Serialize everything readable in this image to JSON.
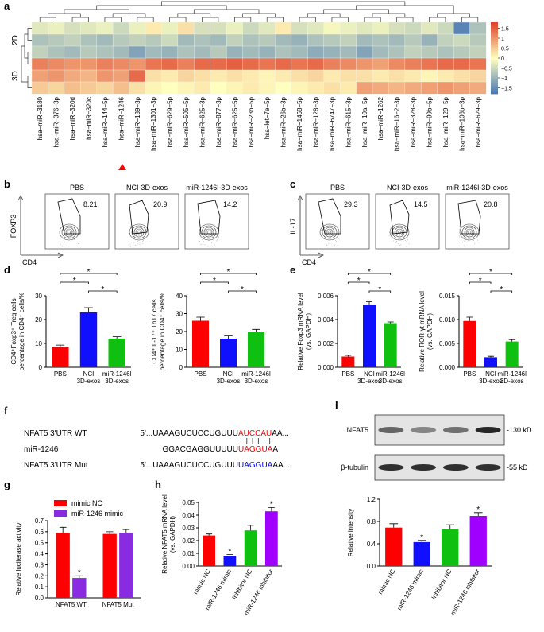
{
  "panel_labels": [
    "a",
    "b",
    "c",
    "d",
    "e",
    "f",
    "g",
    "h",
    "I"
  ],
  "flow": [
    {
      "y_label": "FOXP3",
      "x_label": "CD4",
      "plots": [
        {
          "title": "PBS",
          "gate": 8.21
        },
        {
          "title": "NCI-3D-exos",
          "gate": 20.9
        },
        {
          "title": "miR-1246l-3D-exos",
          "gate": 14.2
        }
      ]
    },
    {
      "y_label": "IL-17",
      "x_label": "CD4",
      "plots": [
        {
          "title": "PBS",
          "gate": 29.3
        },
        {
          "title": "NCI-3D-exos",
          "gate": 14.5
        },
        {
          "title": "miR-1246l-3D-exos",
          "gate": 20.8
        }
      ]
    }
  ],
  "sequence": {
    "rows": [
      {
        "label": "NFAT5 3'UTR WT",
        "before": "5'...UAAAGUCUCCUGUUU",
        "site": "AUCCAU",
        "after": "AA...",
        "site_color": "#ff0000"
      },
      {
        "label": "miR-1246",
        "before": "GGACGAGGUUUUU",
        "site": "UAGGUA",
        "after": "A",
        "site_color": "#ff0000"
      },
      {
        "label": "NFAT5 3'UTR Mut",
        "before": "5'...UAAAGUCUCCUGUUU",
        "site": "UAGGUA",
        "after": "AA...",
        "site_color": "#0000ff"
      }
    ]
  },
  "blot": {
    "bands": [
      "NFAT5",
      "β-tubulin"
    ],
    "markers": [
      "-130 kD",
      "-55 kD"
    ]
  },
  "chart_data": [
    {
      "type": "heatmap",
      "x_categories": [
        "hsa−miR−3180",
        "hsa−miR−376−3p",
        "hsa−miR−320d",
        "hsa−miR−320c",
        "hsa−miR−144−5p",
        "hsa−miR−1246",
        "hsa−miR−139−3p",
        "hsa−miR−1301−3p",
        "hsa−miR−629−5p",
        "hsa−miR−505−5p",
        "hsa−miR−625−3p",
        "hsa−miR−877−3p",
        "hsa−miR−625−5p",
        "hsa−miR−23b−5p",
        "hsa−let−7e−5p",
        "hsa−miR−26b−3p",
        "hsa−miR−1468−5p",
        "hsa−miR−128−3p",
        "hsa−miR−6747−3p",
        "hsa−miR−615−3p",
        "hsa−miR−10a−5p",
        "hsa−miR−1262",
        "hsa−miR−16−2−3p",
        "hsa−miR−328−3p",
        "hsa−miR−99b−5p",
        "hsa−miR−129−5p",
        "hsa−miR−106b−3p",
        "hsa−miR−629−3p"
      ],
      "groups": [
        {
          "name": "2D",
          "values": [
            [
              -0.3,
              -0.2,
              -0.4,
              -0.3,
              -0.2,
              -0.5,
              -0.2,
              0.2,
              -0.2,
              0.3,
              -0.4,
              -0.4,
              -0.2,
              -0.5,
              -0.3,
              0.2,
              -0.4,
              -0.3,
              -0.1,
              -0.2,
              -0.3,
              -0.2,
              -0.4,
              -0.5,
              -0.3,
              -0.5,
              -1.6,
              -0.8
            ],
            [
              -0.8,
              -0.7,
              -0.6,
              -0.8,
              -0.9,
              -0.7,
              -0.6,
              -0.7,
              -0.5,
              -0.9,
              -0.8,
              -0.9,
              -0.6,
              -0.8,
              -0.7,
              -0.9,
              -1.0,
              -0.8,
              -0.7,
              -0.6,
              -0.9,
              -0.8,
              -0.9,
              -0.7,
              -1.0,
              -0.6,
              -0.5,
              -0.7
            ],
            [
              -0.6,
              -0.8,
              -0.9,
              -0.7,
              -0.8,
              -0.9,
              -1.2,
              -0.9,
              -1.0,
              -0.8,
              -0.9,
              -0.7,
              -1.0,
              -0.9,
              -1.0,
              -0.8,
              -0.9,
              -1.1,
              -1.0,
              -0.9,
              -1.2,
              -0.9,
              -0.8,
              -0.6,
              -0.7,
              -0.8,
              -0.7,
              -0.6
            ]
          ]
        },
        {
          "name": "3D",
          "values": [
            [
              1.2,
              1.1,
              1.0,
              1.0,
              1.2,
              1.1,
              1.0,
              1.3,
              1.4,
              1.2,
              1.4,
              1.4,
              1.5,
              1.4,
              1.3,
              1.4,
              1.3,
              1.4,
              1.2,
              1.1,
              1.0,
              0.9,
              1.1,
              1.2,
              1.3,
              1.4,
              1.4,
              1.3
            ],
            [
              0.9,
              1.0,
              0.8,
              0.7,
              1.0,
              0.9,
              1.4,
              0.3,
              0.2,
              0.4,
              0.3,
              0.2,
              0.3,
              0.2,
              0.1,
              0.2,
              0.3,
              0.4,
              0.2,
              0.3,
              0.3,
              0.2,
              0.3,
              0.2,
              0.1,
              0.2,
              0.3,
              0.4
            ],
            [
              0.5,
              0.4,
              0.6,
              0.5,
              0.4,
              0.6,
              0.3,
              0.1,
              0.0,
              0.1,
              0.2,
              0.0,
              0.1,
              0.2,
              0.1,
              0.0,
              0.1,
              0.2,
              0.3,
              0.2,
              0.9,
              0.8,
              0.7,
              0.8,
              0.9,
              1.0,
              0.9,
              0.8
            ]
          ]
        }
      ],
      "zlim": [
        -1.8,
        1.8
      ],
      "zticks": [
        1.5,
        1,
        0.5,
        0,
        {
          "value": -0.5,
          "label": "−0.5"
        },
        {
          "value": -1,
          "label": "−1"
        },
        {
          "value": -1.5,
          "label": "−1.5"
        }
      ],
      "colors": [
        "#4575b4",
        "#ffffbf",
        "#e0402a"
      ]
    },
    {
      "type": "bar",
      "ylabel": [
        "CD4⁺Foxp3⁺ Treg cells",
        "percentage in CD4⁺ cells/%"
      ],
      "categories": [
        "PBS",
        "NCI\n3D-exos",
        "miR-1246l\n3D-exos"
      ],
      "values": [
        8.5,
        23,
        12
      ],
      "errors": [
        0.8,
        2,
        0.8
      ],
      "colors": [
        "#ff0000",
        "#1010ff",
        "#10c010"
      ],
      "ylim": [
        0,
        30
      ],
      "yticks": [
        0,
        10,
        20,
        30
      ],
      "brackets": [
        {
          "bars": [
            1,
            2
          ],
          "label": "*"
        },
        {
          "bars": [
            0,
            1
          ],
          "label": "*"
        },
        {
          "bars": [
            0,
            2
          ],
          "label": "*"
        }
      ]
    },
    {
      "type": "bar",
      "ylabel": [
        "CD4⁺IL-17⁺ Th17 cells",
        "percentage in CD4⁺ cells/%"
      ],
      "categories": [
        "PBS",
        "NCI\n3D-exos",
        "miR-1246l\n3D-exos"
      ],
      "values": [
        26,
        16,
        20
      ],
      "errors": [
        2,
        1.5,
        1.2
      ],
      "colors": [
        "#ff0000",
        "#1010ff",
        "#10c010"
      ],
      "ylim": [
        0,
        40
      ],
      "yticks": [
        0,
        10,
        20,
        30,
        40
      ],
      "brackets": [
        {
          "bars": [
            1,
            2
          ],
          "label": "*"
        },
        {
          "bars": [
            0,
            1
          ],
          "label": "*"
        },
        {
          "bars": [
            0,
            2
          ],
          "label": "*"
        }
      ]
    },
    {
      "type": "bar",
      "ylabel": [
        "Relative Foxp3 mRNA level",
        "(vs. GAPDH)"
      ],
      "categories": [
        "PBS",
        "NCI\n3D-exos",
        "miR-1246l\n3D-exos"
      ],
      "values": [
        0.0009,
        0.0052,
        0.0037
      ],
      "errors": [
        0.0001,
        0.0003,
        0.0001
      ],
      "colors": [
        "#ff0000",
        "#1010ff",
        "#10c010"
      ],
      "ylim": [
        0,
        0.006
      ],
      "yticks": [
        {
          "value": 0,
          "label": "0.000"
        },
        0.002,
        0.004,
        0.006
      ],
      "brackets": [
        {
          "bars": [
            1,
            2
          ],
          "label": "*"
        },
        {
          "bars": [
            0,
            1
          ],
          "label": "*"
        },
        {
          "bars": [
            0,
            2
          ],
          "label": "*"
        }
      ]
    },
    {
      "type": "bar",
      "ylabel": [
        "Relative ROR-γt mRNA level",
        "(vs. GAPDH)"
      ],
      "categories": [
        "PBS",
        "NCI\n3D-exos",
        "miR-1246l\n3D-exos"
      ],
      "values": [
        0.0097,
        0.0021,
        0.0054
      ],
      "errors": [
        0.0008,
        0.0002,
        0.0004
      ],
      "colors": [
        "#ff0000",
        "#1010ff",
        "#10c010"
      ],
      "ylim": [
        0,
        0.015
      ],
      "yticks": [
        {
          "value": 0,
          "label": "0.000"
        },
        {
          "value": 0.005,
          "label": "0.005"
        },
        {
          "value": 0.01,
          "label": "0.010"
        },
        {
          "value": 0.015,
          "label": "0.015"
        }
      ],
      "brackets": [
        {
          "bars": [
            1,
            2
          ],
          "label": "*"
        },
        {
          "bars": [
            0,
            1
          ],
          "label": "*"
        },
        {
          "bars": [
            0,
            2
          ],
          "label": "*"
        }
      ]
    },
    {
      "type": "bar",
      "ylabel": [
        "Relative luciferase activity"
      ],
      "categories": [
        "NFAT5 WT",
        "NFAT5 Mut"
      ],
      "series": [
        {
          "name": "mimic NC",
          "color": "#ff0000",
          "values": [
            0.59,
            0.58
          ],
          "errors": [
            0.05,
            0.02
          ]
        },
        {
          "name": "miR-1246 mimic",
          "color": "#8a2be2",
          "values": [
            0.18,
            0.59
          ],
          "errors": [
            0.02,
            0.03
          ]
        }
      ],
      "ylim": [
        0,
        0.7
      ],
      "yticks": [
        {
          "value": 0,
          "label": "0.0"
        },
        0.1,
        0.2,
        0.3,
        0.4,
        0.5,
        0.6,
        0.7
      ],
      "annotations": [
        {
          "series": 1,
          "bar": 0,
          "label": "*"
        }
      ],
      "legend": "top-left"
    },
    {
      "type": "bar",
      "ylabel": [
        "Relative NFAT5 mRNA level",
        "(vs. GAPDH)"
      ],
      "categories": [
        "mimic NC",
        "miR-1246 mimic",
        "Inhibitor NC",
        "miR-1246 inhibitor"
      ],
      "values": [
        0.024,
        0.008,
        0.028,
        0.043
      ],
      "errors": [
        0.0012,
        0.001,
        0.004,
        0.003
      ],
      "colors": [
        "#ff0000",
        "#1010ff",
        "#10c010",
        "#a000ff"
      ],
      "ylim": [
        0,
        0.05
      ],
      "yticks": [
        {
          "value": 0,
          "label": "0.00"
        },
        0.01,
        0.02,
        0.03,
        0.04,
        0.05
      ],
      "annotations": [
        {
          "bar": 1,
          "label": "*"
        },
        {
          "bar": 3,
          "label": "*"
        }
      ],
      "x_label_rotation": -60
    },
    {
      "type": "bar",
      "ylabel": [
        "Relative intensity"
      ],
      "categories": [
        "mimic NC",
        "miR-1246 mimic",
        "Inhibitor NC",
        "miR-1246 inhibitor"
      ],
      "values": [
        0.69,
        0.43,
        0.66,
        0.9
      ],
      "errors": [
        0.07,
        0.03,
        0.08,
        0.06
      ],
      "colors": [
        "#ff0000",
        "#1010ff",
        "#10c010",
        "#a000ff"
      ],
      "ylim": [
        0,
        1.2
      ],
      "yticks": [
        {
          "value": 0,
          "label": "0.0"
        },
        0.4,
        0.8,
        1.2
      ],
      "annotations": [
        {
          "bar": 1,
          "label": "*"
        },
        {
          "bar": 3,
          "label": "*"
        }
      ],
      "x_label_rotation": -60
    }
  ]
}
